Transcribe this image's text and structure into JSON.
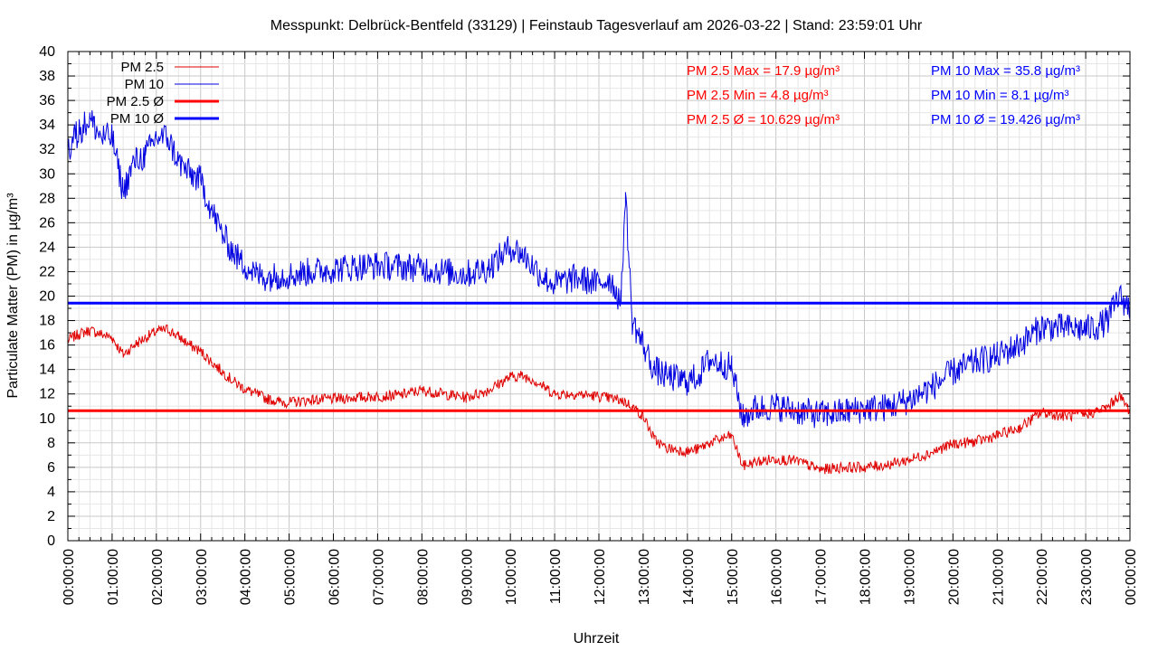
{
  "chart_data": {
    "type": "line",
    "title": "Messpunkt: Delbrück-Bentfeld (33129) | Feinstaub Tagesverlauf am 2026-03-22 | Stand: 23:59:01 Uhr",
    "xlabel": "Uhrzeit",
    "ylabel": "Particulate Matter (PM) in µg/m³",
    "ylim": [
      0,
      40
    ],
    "xlim": [
      0,
      24
    ],
    "grid": true,
    "legend_position": "top-left",
    "x_ticks": [
      "00:00:00",
      "01:00:00",
      "02:00:00",
      "03:00:00",
      "04:00:00",
      "05:00:00",
      "06:00:00",
      "07:00:00",
      "08:00:00",
      "09:00:00",
      "10:00:00",
      "11:00:00",
      "12:00:00",
      "13:00:00",
      "14:00:00",
      "15:00:00",
      "16:00:00",
      "17:00:00",
      "18:00:00",
      "19:00:00",
      "20:00:00",
      "21:00:00",
      "22:00:00",
      "23:00:00",
      "00:00:00"
    ],
    "y_ticks": [
      "0",
      "2",
      "4",
      "6",
      "8",
      "10",
      "12",
      "14",
      "16",
      "18",
      "20",
      "22",
      "24",
      "26",
      "28",
      "30",
      "32",
      "34",
      "36",
      "38",
      "40"
    ],
    "series": [
      {
        "name": "PM 2.5",
        "color": "#e00000",
        "x": [
          0,
          0.25,
          0.5,
          0.75,
          1,
          1.25,
          1.5,
          1.75,
          2,
          2.25,
          2.5,
          2.75,
          3,
          3.25,
          3.5,
          3.75,
          4,
          4.25,
          4.5,
          4.75,
          5,
          5.5,
          6,
          6.5,
          7,
          7.5,
          8,
          8.5,
          9,
          9.5,
          10,
          10.25,
          10.5,
          10.75,
          11,
          11.5,
          12,
          12.5,
          12.75,
          13,
          13.25,
          13.5,
          14,
          14.25,
          14.5,
          15,
          15.25,
          15.5,
          16,
          16.5,
          17,
          17.5,
          18,
          18.5,
          19,
          19.5,
          20,
          20.5,
          21,
          21.5,
          22,
          22.5,
          23,
          23.25,
          23.5,
          23.75,
          24
        ],
        "values": [
          16.4,
          16.9,
          17.2,
          16.9,
          16.6,
          15.2,
          16.0,
          16.6,
          17.1,
          17.3,
          16.7,
          16.0,
          15.5,
          14.6,
          13.8,
          13.0,
          12.4,
          12.0,
          11.6,
          11.4,
          11.3,
          11.5,
          11.6,
          11.7,
          11.8,
          11.9,
          12.3,
          12.0,
          11.7,
          12.3,
          13.4,
          13.5,
          13.2,
          12.6,
          12.0,
          12.0,
          11.8,
          11.5,
          11.0,
          10.2,
          8.3,
          7.6,
          7.3,
          7.5,
          8.0,
          8.6,
          6.1,
          6.4,
          6.7,
          6.5,
          5.8,
          6.0,
          6.0,
          6.2,
          6.6,
          7.2,
          7.9,
          8.1,
          8.6,
          9.2,
          10.5,
          10.2,
          10.3,
          10.6,
          10.9,
          11.9,
          10.6
        ]
      },
      {
        "name": "PM 10",
        "color": "#0000e0",
        "x": [
          0,
          0.25,
          0.5,
          0.75,
          1,
          1.25,
          1.5,
          1.75,
          2,
          2.25,
          2.5,
          2.75,
          3,
          3.25,
          3.5,
          3.75,
          4,
          4.25,
          4.5,
          4.75,
          5,
          5.5,
          6,
          6.5,
          7,
          7.5,
          8,
          8.5,
          9,
          9.5,
          10,
          10.25,
          10.5,
          10.75,
          11,
          11.5,
          12,
          12.25,
          12.5,
          12.6,
          12.75,
          13,
          13.25,
          13.5,
          14,
          14.25,
          14.5,
          15,
          15.25,
          15.5,
          16,
          16.5,
          17,
          17.5,
          18,
          18.5,
          19,
          19.5,
          20,
          20.5,
          21,
          21.5,
          22,
          22.5,
          23,
          23.25,
          23.5,
          23.75,
          24
        ],
        "values": [
          32.0,
          33.5,
          34.5,
          33.0,
          33.0,
          28.5,
          31.0,
          31.5,
          33.0,
          33.0,
          31.0,
          30.0,
          29.5,
          27.0,
          25.0,
          23.5,
          22.5,
          21.8,
          21.5,
          21.7,
          21.7,
          22.0,
          22.2,
          22.4,
          22.5,
          22.4,
          22.3,
          22.0,
          21.8,
          22.3,
          24.0,
          23.5,
          22.5,
          21.5,
          21.0,
          21.5,
          21.0,
          21.5,
          19.5,
          28.5,
          18.0,
          16.0,
          14.0,
          13.5,
          13.0,
          13.5,
          14.8,
          14.2,
          10.0,
          10.8,
          11.0,
          10.6,
          10.3,
          10.5,
          10.8,
          10.9,
          11.5,
          12.5,
          13.8,
          14.6,
          15.1,
          16.0,
          17.5,
          17.4,
          17.3,
          17.5,
          18.0,
          20.0,
          19.0
        ]
      },
      {
        "name": "PM 2.5 Ø",
        "color": "#ff0000",
        "x": [
          0,
          24
        ],
        "values": [
          10.629,
          10.629
        ]
      },
      {
        "name": "PM 10 Ø",
        "color": "#0000ff",
        "x": [
          0,
          24
        ],
        "values": [
          19.426,
          19.426
        ]
      }
    ],
    "annotations": {
      "pm25": [
        "PM 2.5 Max = 17.9 µg/m³",
        "PM 2.5 Min = 4.8 µg/m³",
        "PM 2.5 Ø = 10.629 µg/m³"
      ],
      "pm10": [
        "PM 10 Max = 35.8 µg/m³",
        "PM 10 Min = 8.1 µg/m³",
        "PM 10 Ø = 19.426 µg/m³"
      ]
    }
  }
}
